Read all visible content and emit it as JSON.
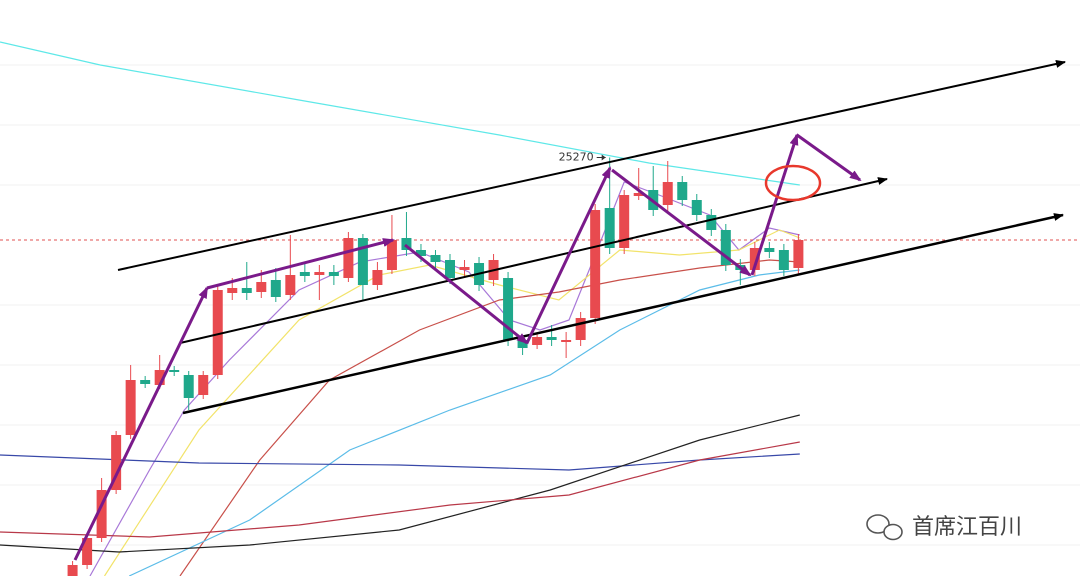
{
  "chart_data": {
    "type": "candlestick",
    "xlim": [
      -5,
      69.4
    ],
    "ylim": [
      23596,
      25900
    ],
    "up_color": "#e84a4f",
    "down_color": "#1fa88b",
    "open": [
      23596,
      23640,
      23748,
      23940,
      24160,
      24380,
      24360,
      24420,
      24400,
      24320,
      24400,
      24728,
      24748,
      24732,
      24780,
      24720,
      24812,
      24800,
      24812,
      24788,
      24948,
      24760,
      24820,
      24948,
      24900,
      24880,
      24860,
      24820,
      24848,
      24780,
      24788,
      24540,
      24520,
      24552,
      24532,
      24540,
      24628,
      25068,
      24908,
      25116,
      25140,
      25080,
      25172,
      25100,
      25040,
      24980,
      24840,
      24820,
      24908,
      24900,
      24828
    ],
    "high": [
      23656,
      23764,
      23988,
      24176,
      24440,
      24396,
      24480,
      24436,
      24416,
      24416,
      24760,
      24788,
      24852,
      24820,
      24828,
      24960,
      24852,
      24840,
      24840,
      24972,
      24964,
      24852,
      25040,
      25052,
      24924,
      24900,
      24884,
      24860,
      24872,
      24884,
      24812,
      24560,
      24568,
      24600,
      24572,
      24652,
      25084,
      25270,
      25140,
      25228,
      25236,
      25256,
      25196,
      25124,
      25064,
      25004,
      24864,
      24932,
      24932,
      24924,
      24964
    ],
    "low": [
      23596,
      23624,
      23732,
      23924,
      24144,
      24348,
      24344,
      24396,
      24260,
      24304,
      24384,
      24700,
      24700,
      24708,
      24692,
      24700,
      24772,
      24700,
      24760,
      24772,
      24700,
      24740,
      24804,
      24876,
      24852,
      24828,
      24764,
      24796,
      24736,
      24756,
      24516,
      24480,
      24504,
      24516,
      24468,
      24516,
      24604,
      24884,
      24884,
      25100,
      25036,
      25056,
      25076,
      25016,
      24956,
      24816,
      24760,
      24796,
      24868,
      24796,
      24804
    ],
    "close": [
      23640,
      23748,
      23940,
      24160,
      24380,
      24364,
      24420,
      24412,
      24308,
      24400,
      24740,
      24748,
      24728,
      24772,
      24712,
      24800,
      24796,
      24812,
      24796,
      24948,
      24760,
      24820,
      24940,
      24900,
      24876,
      24852,
      24788,
      24832,
      24760,
      24860,
      24540,
      24508,
      24552,
      24540,
      24540,
      24628,
      25060,
      24908,
      25120,
      25128,
      25060,
      25172,
      25100,
      25040,
      24980,
      24840,
      24820,
      24908,
      24892,
      24820,
      24940
    ],
    "overlays": [
      {
        "color": "#5ee8e8",
        "x": [
          -5,
          1.9,
          15.6,
          29.4,
          39.7,
          50.1
        ],
        "values": [
          25732,
          25640,
          25500,
          25360,
          25248,
          25160
        ]
      },
      {
        "color": "#a878d8",
        "x": [
          1.2,
          5.3,
          7.7,
          10.8,
          15.6,
          19.8,
          23.9,
          27.3,
          30.1,
          32.2,
          34.2,
          36,
          38,
          40.4,
          43.9,
          45.9,
          48,
          50.1
        ],
        "values": [
          23596,
          24020,
          24260,
          24460,
          24740,
          24852,
          24892,
          24812,
          24620,
          24580,
          24620,
          24880,
          25172,
          25120,
          25040,
          24900,
          24988,
          24960
        ]
      },
      {
        "color": "#f2e36a",
        "x": [
          2.2,
          8.7,
          15.6,
          21.1,
          24.6,
          29.4,
          33.5,
          37.7,
          41.8,
          45.9,
          48.7,
          50.1
        ],
        "values": [
          23596,
          24180,
          24620,
          24800,
          24840,
          24760,
          24700,
          24900,
          24880,
          24900,
          24980,
          24948
        ]
      },
      {
        "color": "#c8504a",
        "x": [
          7.4,
          12.9,
          17.7,
          23.9,
          29.4,
          33.5,
          37.7,
          43.2,
          48,
          50.1
        ],
        "values": [
          23596,
          24060,
          24380,
          24580,
          24700,
          24732,
          24780,
          24828,
          24860,
          24852
        ]
      },
      {
        "color": "#5bbce8",
        "x": [
          3.9,
          12.2,
          19.1,
          26,
          32.9,
          37.7,
          43.2,
          47.3,
          50.1
        ],
        "values": [
          23596,
          23820,
          24100,
          24260,
          24400,
          24580,
          24740,
          24800,
          24820
        ]
      },
      {
        "color": "#3848a8",
        "x": [
          -5,
          8.7,
          22.5,
          34.2,
          43.2,
          50.1
        ],
        "values": [
          24080,
          24048,
          24040,
          24020,
          24060,
          24084
        ]
      },
      {
        "color": "#222222",
        "x": [
          -5,
          3.2,
          12.2,
          22.5,
          32.9,
          43.2,
          50.1
        ],
        "values": [
          23720,
          23692,
          23720,
          23780,
          23940,
          24140,
          24240
        ]
      },
      {
        "color": "#b83848",
        "x": [
          -5,
          5.3,
          15.6,
          26,
          34.2,
          43.2,
          50.1
        ],
        "values": [
          23772,
          23752,
          23800,
          23880,
          23920,
          24060,
          24132
        ]
      }
    ],
    "price_line": {
      "value": 24940,
      "color": "#e05050"
    },
    "watermark": "首席江百川"
  }
}
